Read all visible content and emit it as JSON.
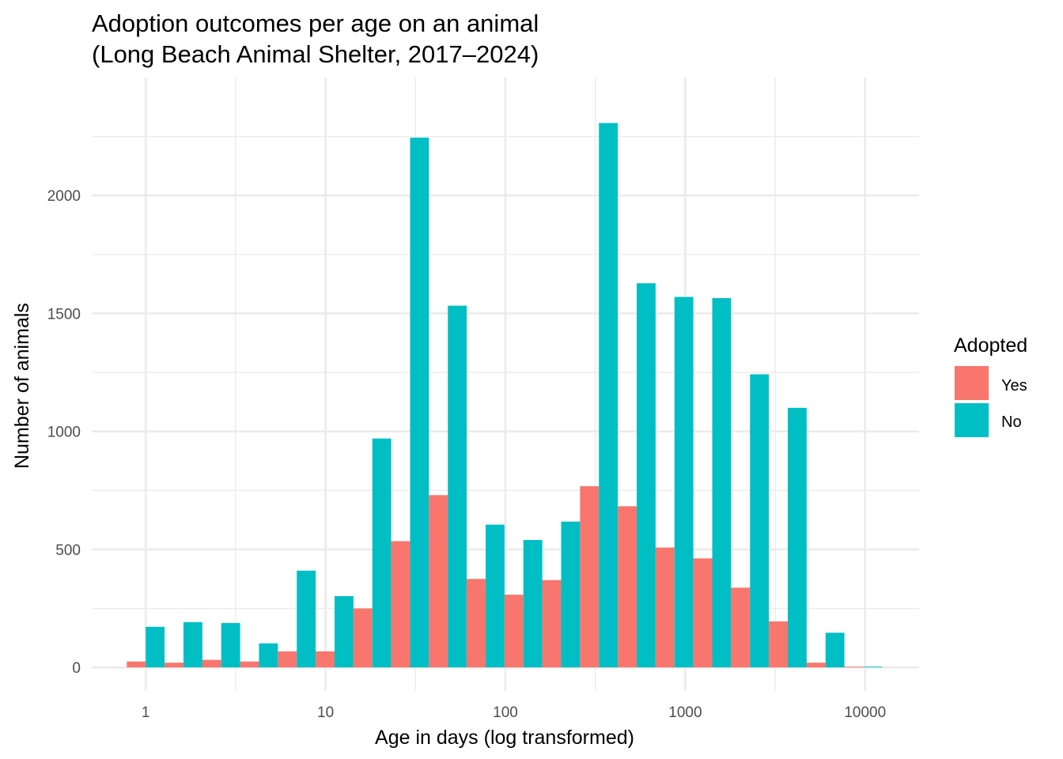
{
  "chart_data": {
    "type": "bar",
    "title_line1": "Adoption outcomes per age on an animal",
    "title_line2": "(Long Beach Animal Shelter, 2017–2024)",
    "xlabel": "Age in days (log transformed)",
    "ylabel": "Number of animals",
    "x_scale": "log10",
    "xlim_log10": [
      -0.3,
      4.3
    ],
    "ylim": [
      -100,
      2500
    ],
    "x_ticks": [
      {
        "label": "1",
        "log10": 0
      },
      {
        "label": "10",
        "log10": 1
      },
      {
        "label": "100",
        "log10": 2
      },
      {
        "label": "1000",
        "log10": 3
      },
      {
        "label": "10000",
        "log10": 4
      }
    ],
    "x_minor_log10": [
      0.5,
      1.5,
      2.5,
      3.5
    ],
    "y_ticks": [
      0,
      500,
      1000,
      1500,
      2000
    ],
    "y_minor": [
      250,
      750,
      1250,
      1750,
      2250
    ],
    "bin_width_log10": 0.21,
    "bin_centers_log10": [
      0,
      0.21,
      0.42,
      0.63,
      0.84,
      1.05,
      1.26,
      1.47,
      1.68,
      1.89,
      2.1,
      2.31,
      2.52,
      2.73,
      2.94,
      3.15,
      3.36,
      3.57,
      3.78,
      3.99
    ],
    "legend": {
      "title": "Adopted",
      "position": "right"
    },
    "series": [
      {
        "name": "Yes",
        "color": "#F8766D",
        "values": [
          25,
          20,
          32,
          25,
          68,
          68,
          250,
          535,
          730,
          375,
          308,
          370,
          768,
          683,
          508,
          462,
          338,
          195,
          20,
          3
        ]
      },
      {
        "name": "No",
        "color": "#00BFC4",
        "values": [
          172,
          192,
          188,
          102,
          410,
          302,
          970,
          2245,
          1533,
          605,
          540,
          618,
          2307,
          1628,
          1570,
          1565,
          1242,
          1100,
          147,
          3
        ]
      }
    ]
  }
}
